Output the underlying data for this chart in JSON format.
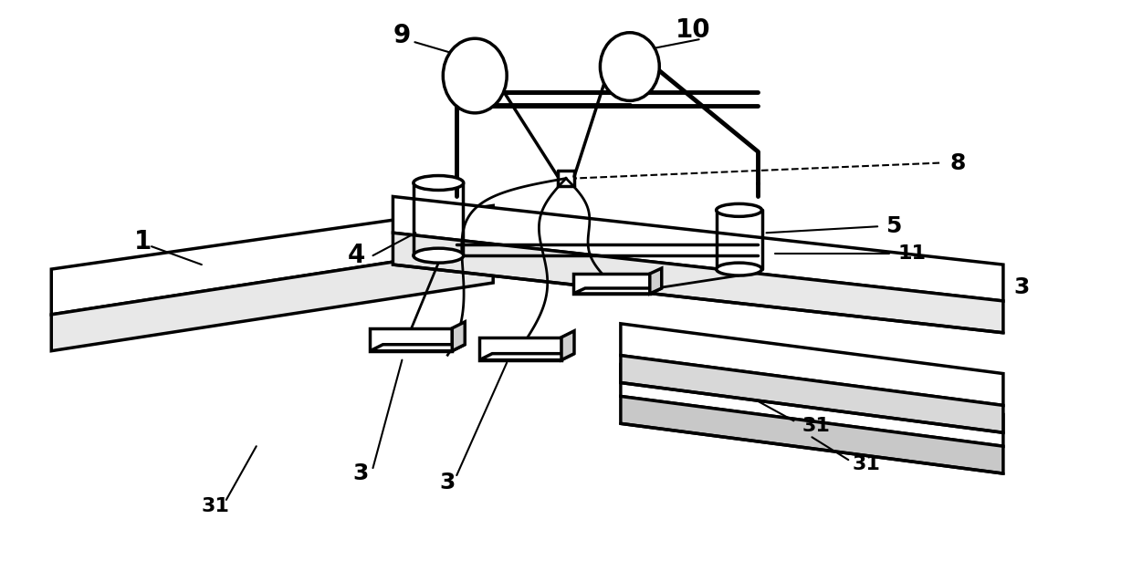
{
  "bg_color": "#ffffff",
  "lw": 2.0,
  "lw_thick": 2.5,
  "fig_width": 12.4,
  "fig_height": 6.26
}
